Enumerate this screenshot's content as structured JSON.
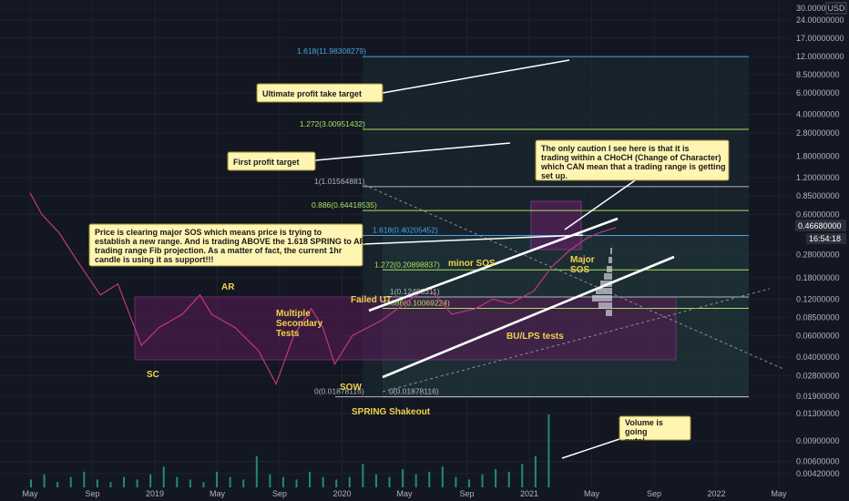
{
  "chart_data": {
    "type": "line",
    "scale": "log",
    "currency": "USD",
    "price_axis": {
      "ticks": [
        "30.00000000",
        "24.00000000",
        "17.00000000",
        "12.00000000",
        "8.50000000",
        "6.00000000",
        "4.00000000",
        "2.80000000",
        "1.80000000",
        "1.20000000",
        "0.85000000",
        "0.60000000",
        "0.46680000",
        "0.28000000",
        "0.18000000",
        "0.12000000",
        "0.08500000",
        "0.06000000",
        "0.04000000",
        "0.02800000",
        "0.01900000",
        "0.01300000",
        "0.00900000",
        "0.00600000",
        "0.00420000"
      ],
      "current_price": "0.46680000",
      "countdown": "16:54:18"
    },
    "time_axis": [
      "May",
      "Sep",
      "2019",
      "May",
      "Sep",
      "2020",
      "May",
      "Sep",
      "2021",
      "May",
      "Sep",
      "2022",
      "May"
    ],
    "fib_levels": [
      {
        "label": "1.618(11.98308279)",
        "value": 11.98308279,
        "color": "#4aa3df"
      },
      {
        "label": "1.272(3.00951432)",
        "value": 3.00951432,
        "color": "#a8e05f"
      },
      {
        "label": "1(1.01564881)",
        "value": 1.01564881,
        "color": "#b2b5be"
      },
      {
        "label": "0.886(0.64418535)",
        "value": 0.64418535,
        "color": "#a8e05f"
      },
      {
        "label": "1.618(0.40205452)",
        "value": 0.40205452,
        "color": "#4aa3df"
      },
      {
        "label": "1.272(0.20898837)",
        "value": 0.20898837,
        "color": "#a8e05f"
      },
      {
        "label": "1(0.12493311)",
        "value": 0.12493311,
        "color": "#b2b5be"
      },
      {
        "label": "0.886(0.10069224)",
        "value": 0.10069224,
        "color": "#a8e05f"
      },
      {
        "label": "0(0.01878116)",
        "value": 0.01878116,
        "color": "#b2b5be"
      },
      {
        "label": "0(0.01878116)",
        "value": 0.01878116,
        "color": "#b2b5be"
      }
    ],
    "price_series": [
      [
        0,
        0.9
      ],
      [
        0.02,
        0.6
      ],
      [
        0.05,
        0.42
      ],
      [
        0.08,
        0.25
      ],
      [
        0.12,
        0.13
      ],
      [
        0.15,
        0.16
      ],
      [
        0.19,
        0.05
      ],
      [
        0.22,
        0.07
      ],
      [
        0.26,
        0.09
      ],
      [
        0.29,
        0.13
      ],
      [
        0.31,
        0.09
      ],
      [
        0.35,
        0.07
      ],
      [
        0.39,
        0.045
      ],
      [
        0.42,
        0.024
      ],
      [
        0.45,
        0.06
      ],
      [
        0.48,
        0.1
      ],
      [
        0.5,
        0.07
      ],
      [
        0.52,
        0.035
      ],
      [
        0.55,
        0.06
      ],
      [
        0.6,
        0.08
      ],
      [
        0.65,
        0.12
      ],
      [
        0.68,
        0.15
      ],
      [
        0.72,
        0.09
      ],
      [
        0.76,
        0.1
      ],
      [
        0.79,
        0.12
      ],
      [
        0.82,
        0.11
      ],
      [
        0.86,
        0.14
      ],
      [
        0.89,
        0.22
      ],
      [
        0.92,
        0.3
      ],
      [
        0.95,
        0.38
      ],
      [
        0.97,
        0.42
      ],
      [
        1.0,
        0.4668
      ]
    ],
    "volume_series": [
      3,
      5,
      2,
      4,
      6,
      3,
      2,
      4,
      3,
      5,
      8,
      4,
      3,
      2,
      6,
      4,
      3,
      12,
      5,
      4,
      3,
      6,
      4,
      3,
      4,
      9,
      5,
      4,
      7,
      5,
      6,
      8,
      4,
      3,
      5,
      7,
      6,
      9,
      12,
      28
    ],
    "wyckoff_labels": [
      "SC",
      "AR",
      "Multiple Secondary Tests",
      "SOW",
      "Failed UT",
      "SPRING Shakeout",
      "minor SOS",
      "BU/LPS tests",
      "Major SOS"
    ],
    "annotations": [
      "Ultimate profit take target",
      "First profit target",
      "Price is clearing major SOS which means price is trying to establish a new range. And is trading ABOVE the 1.618 SPRING to AR trading range Fib projection. As a matter of fact, the current 1hr candle is using it as support!!!",
      "The only caution I see here is that it is trading within a CHoCH (Change of Character) which CAN mean that a trading range is getting set up.",
      "Volume is going nuts!"
    ]
  },
  "colors": {
    "background": "#131722",
    "price_line": "#c0387f",
    "range_box": "#8e2a82",
    "fib_blue": "#4aa3df",
    "fib_green": "#a8e05f",
    "label_yellow": "#f0d24a",
    "note_fill": "#fff5b3"
  }
}
